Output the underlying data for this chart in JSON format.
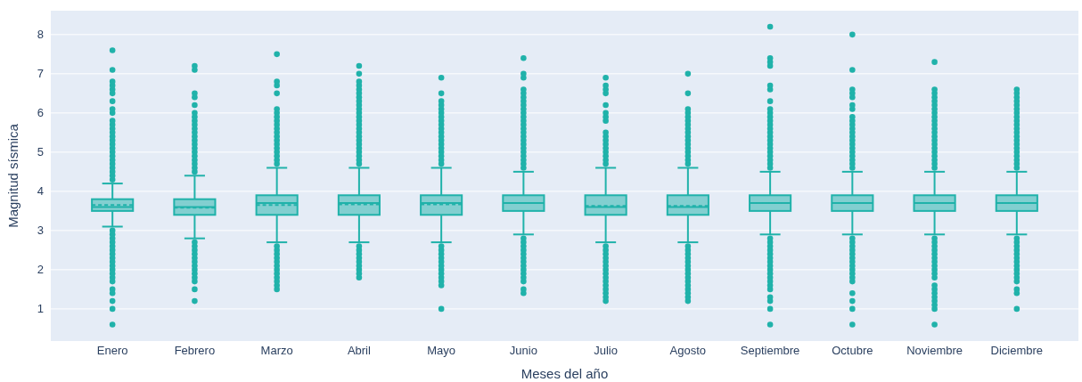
{
  "chart_data": {
    "type": "box",
    "xlabel": "Meses del año",
    "ylabel": "Magnitud sísmica",
    "categories": [
      "Enero",
      "Febrero",
      "Marzo",
      "Abril",
      "Mayo",
      "Junio",
      "Julio",
      "Agosto",
      "Septiembre",
      "Octubre",
      "Noviembre",
      "Diciembre"
    ],
    "ylim": [
      0.18,
      8.61
    ],
    "yticks": [
      1,
      2,
      3,
      4,
      5,
      6,
      7,
      8
    ],
    "grid": "y",
    "marker": "circle",
    "series": [
      {
        "color": "#20b2aa",
        "boxes": [
          {
            "low": 3.1,
            "q1": 3.5,
            "median": 3.6,
            "q3": 3.8,
            "high": 4.2,
            "mean": 3.65,
            "outliers": [
              0.6,
              1.0,
              1.2,
              1.4,
              1.5,
              1.7,
              1.8,
              1.9,
              2.0,
              2.1,
              2.2,
              2.3,
              2.4,
              2.5,
              2.6,
              2.7,
              2.8,
              2.9,
              3.0,
              4.3,
              4.4,
              4.5,
              4.6,
              4.7,
              4.8,
              4.9,
              5.0,
              5.1,
              5.2,
              5.3,
              5.4,
              5.5,
              5.6,
              5.7,
              5.8,
              6.0,
              6.1,
              6.3,
              6.5,
              6.6,
              6.7,
              6.8,
              7.1,
              7.6
            ]
          },
          {
            "low": 2.8,
            "q1": 3.4,
            "median": 3.6,
            "q3": 3.8,
            "high": 4.4,
            "mean": 3.58,
            "outliers": [
              1.2,
              1.5,
              1.7,
              1.8,
              1.9,
              2.0,
              2.1,
              2.2,
              2.3,
              2.4,
              2.5,
              2.6,
              2.7,
              4.5,
              4.6,
              4.7,
              4.8,
              4.9,
              5.0,
              5.1,
              5.2,
              5.3,
              5.4,
              5.5,
              5.6,
              5.7,
              5.8,
              5.9,
              6.0,
              6.2,
              6.4,
              6.5,
              7.1,
              7.2
            ]
          },
          {
            "low": 2.7,
            "q1": 3.4,
            "median": 3.7,
            "q3": 3.9,
            "high": 4.6,
            "mean": 3.65,
            "outliers": [
              1.5,
              1.6,
              1.7,
              1.8,
              1.9,
              2.0,
              2.1,
              2.2,
              2.3,
              2.4,
              2.5,
              2.6,
              4.7,
              4.8,
              4.9,
              5.0,
              5.1,
              5.2,
              5.3,
              5.4,
              5.5,
              5.6,
              5.7,
              5.8,
              5.9,
              6.0,
              6.1,
              6.5,
              6.7,
              6.8,
              7.5
            ]
          },
          {
            "low": 2.7,
            "q1": 3.4,
            "median": 3.7,
            "q3": 3.9,
            "high": 4.6,
            "mean": 3.67,
            "outliers": [
              1.8,
              1.9,
              2.0,
              2.1,
              2.2,
              2.3,
              2.4,
              2.5,
              2.6,
              4.7,
              4.8,
              4.9,
              5.0,
              5.1,
              5.2,
              5.3,
              5.4,
              5.5,
              5.6,
              5.7,
              5.8,
              5.9,
              6.0,
              6.1,
              6.2,
              6.3,
              6.4,
              6.5,
              6.6,
              6.7,
              6.8,
              7.0,
              7.2
            ]
          },
          {
            "low": 2.7,
            "q1": 3.4,
            "median": 3.7,
            "q3": 3.9,
            "high": 4.6,
            "mean": 3.67,
            "outliers": [
              1.0,
              1.6,
              1.7,
              1.8,
              1.9,
              2.0,
              2.1,
              2.2,
              2.3,
              2.4,
              2.5,
              2.6,
              4.7,
              4.8,
              4.9,
              5.0,
              5.1,
              5.2,
              5.3,
              5.4,
              5.5,
              5.6,
              5.7,
              5.8,
              5.9,
              6.0,
              6.1,
              6.2,
              6.3,
              6.5,
              6.9
            ]
          },
          {
            "low": 2.9,
            "q1": 3.5,
            "median": 3.7,
            "q3": 3.9,
            "high": 4.5,
            "mean": 3.7,
            "outliers": [
              1.4,
              1.5,
              1.7,
              1.8,
              1.9,
              2.0,
              2.1,
              2.2,
              2.3,
              2.4,
              2.5,
              2.6,
              2.7,
              2.8,
              4.6,
              4.7,
              4.8,
              4.9,
              5.0,
              5.1,
              5.2,
              5.3,
              5.4,
              5.5,
              5.6,
              5.7,
              5.8,
              5.9,
              6.0,
              6.1,
              6.2,
              6.3,
              6.4,
              6.5,
              6.6,
              6.9,
              7.0,
              7.4
            ]
          },
          {
            "low": 2.7,
            "q1": 3.4,
            "median": 3.6,
            "q3": 3.9,
            "high": 4.6,
            "mean": 3.63,
            "outliers": [
              1.2,
              1.3,
              1.4,
              1.5,
              1.6,
              1.7,
              1.8,
              1.9,
              2.0,
              2.1,
              2.2,
              2.3,
              2.4,
              2.5,
              2.6,
              4.7,
              4.8,
              4.9,
              5.0,
              5.1,
              5.2,
              5.3,
              5.4,
              5.5,
              5.8,
              5.9,
              6.0,
              6.2,
              6.5,
              6.6,
              6.7,
              6.9
            ]
          },
          {
            "low": 2.7,
            "q1": 3.4,
            "median": 3.6,
            "q3": 3.9,
            "high": 4.6,
            "mean": 3.63,
            "outliers": [
              1.2,
              1.3,
              1.4,
              1.5,
              1.6,
              1.7,
              1.8,
              1.9,
              2.0,
              2.1,
              2.2,
              2.3,
              2.4,
              2.5,
              2.6,
              4.7,
              4.8,
              4.9,
              5.0,
              5.1,
              5.2,
              5.3,
              5.4,
              5.5,
              5.6,
              5.7,
              5.8,
              5.9,
              6.0,
              6.1,
              6.5,
              7.0
            ]
          },
          {
            "low": 2.9,
            "q1": 3.5,
            "median": 3.7,
            "q3": 3.9,
            "high": 4.5,
            "mean": 3.7,
            "outliers": [
              0.6,
              1.0,
              1.2,
              1.3,
              1.5,
              1.6,
              1.7,
              1.8,
              1.9,
              2.0,
              2.1,
              2.2,
              2.3,
              2.4,
              2.5,
              2.6,
              2.7,
              2.8,
              4.6,
              4.7,
              4.8,
              4.9,
              5.0,
              5.1,
              5.2,
              5.3,
              5.4,
              5.5,
              5.6,
              5.7,
              5.8,
              5.9,
              6.0,
              6.1,
              6.3,
              6.6,
              6.7,
              7.2,
              7.3,
              7.4,
              8.2
            ]
          },
          {
            "low": 2.9,
            "q1": 3.5,
            "median": 3.7,
            "q3": 3.9,
            "high": 4.5,
            "mean": 3.7,
            "outliers": [
              0.6,
              1.0,
              1.2,
              1.4,
              1.7,
              1.8,
              1.9,
              2.0,
              2.1,
              2.2,
              2.3,
              2.4,
              2.5,
              2.6,
              2.7,
              2.8,
              4.6,
              4.7,
              4.8,
              4.9,
              5.0,
              5.1,
              5.2,
              5.3,
              5.4,
              5.5,
              5.6,
              5.7,
              5.8,
              5.9,
              6.1,
              6.2,
              6.4,
              6.5,
              6.6,
              7.1,
              8.0
            ]
          },
          {
            "low": 2.9,
            "q1": 3.5,
            "median": 3.7,
            "q3": 3.9,
            "high": 4.5,
            "mean": 3.7,
            "outliers": [
              0.6,
              1.0,
              1.1,
              1.2,
              1.3,
              1.4,
              1.5,
              1.6,
              1.8,
              1.9,
              2.0,
              2.1,
              2.2,
              2.3,
              2.4,
              2.5,
              2.6,
              2.7,
              2.8,
              4.6,
              4.7,
              4.8,
              4.9,
              5.0,
              5.1,
              5.2,
              5.3,
              5.4,
              5.5,
              5.6,
              5.7,
              5.8,
              5.9,
              6.0,
              6.1,
              6.2,
              6.3,
              6.4,
              6.5,
              6.6,
              7.3
            ]
          },
          {
            "low": 2.9,
            "q1": 3.5,
            "median": 3.7,
            "q3": 3.9,
            "high": 4.5,
            "mean": 3.7,
            "outliers": [
              1.0,
              1.4,
              1.5,
              1.7,
              1.8,
              1.9,
              2.0,
              2.1,
              2.2,
              2.3,
              2.4,
              2.5,
              2.6,
              2.7,
              2.8,
              4.6,
              4.7,
              4.8,
              4.9,
              5.0,
              5.1,
              5.2,
              5.3,
              5.4,
              5.5,
              5.6,
              5.7,
              5.8,
              5.9,
              6.0,
              6.1,
              6.2,
              6.3,
              6.4,
              6.5,
              6.6
            ]
          }
        ]
      }
    ]
  }
}
